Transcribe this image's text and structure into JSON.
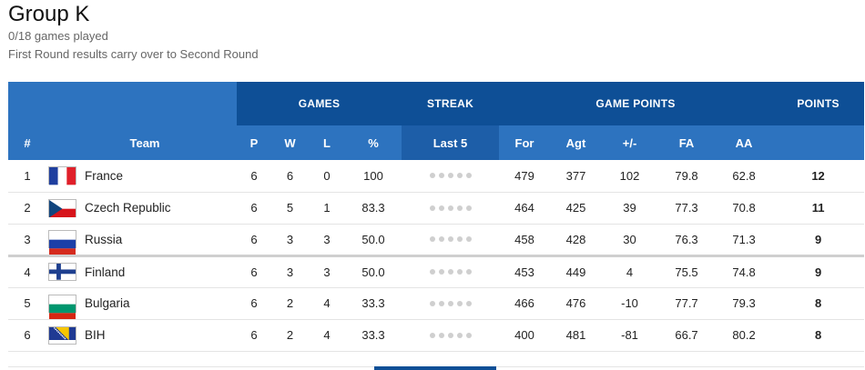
{
  "header": {
    "title": "Group K",
    "games_played": "0/18 games played",
    "note": "First Round results carry over to Second Round"
  },
  "table": {
    "group_headers": {
      "games": "GAMES",
      "streak": "STREAK",
      "game_points": "GAME POINTS",
      "points": "POINTS"
    },
    "columns": {
      "rank": "#",
      "team": "Team",
      "p": "P",
      "w": "W",
      "l": "L",
      "pct": "%",
      "last5": "Last 5",
      "for": "For",
      "agt": "Agt",
      "diff": "+/-",
      "fa": "FA",
      "aa": "AA"
    },
    "rows": [
      {
        "rank": "1",
        "team": "France",
        "flag": "france-flag-icon",
        "p": "6",
        "w": "6",
        "l": "0",
        "pct": "100",
        "for": "479",
        "agt": "377",
        "diff": "102",
        "fa": "79.8",
        "aa": "62.8",
        "pts": "12"
      },
      {
        "rank": "2",
        "team": "Czech Republic",
        "flag": "czech-flag-icon",
        "p": "6",
        "w": "5",
        "l": "1",
        "pct": "83.3",
        "for": "464",
        "agt": "425",
        "diff": "39",
        "fa": "77.3",
        "aa": "70.8",
        "pts": "11"
      },
      {
        "rank": "3",
        "team": "Russia",
        "flag": "russia-flag-icon",
        "p": "6",
        "w": "3",
        "l": "3",
        "pct": "50.0",
        "for": "458",
        "agt": "428",
        "diff": "30",
        "fa": "76.3",
        "aa": "71.3",
        "pts": "9"
      },
      {
        "rank": "4",
        "team": "Finland",
        "flag": "finland-flag-icon",
        "p": "6",
        "w": "3",
        "l": "3",
        "pct": "50.0",
        "for": "453",
        "agt": "449",
        "diff": "4",
        "fa": "75.5",
        "aa": "74.8",
        "pts": "9"
      },
      {
        "rank": "5",
        "team": "Bulgaria",
        "flag": "bulgaria-flag-icon",
        "p": "6",
        "w": "2",
        "l": "4",
        "pct": "33.3",
        "for": "466",
        "agt": "476",
        "diff": "-10",
        "fa": "77.7",
        "aa": "79.3",
        "pts": "8"
      },
      {
        "rank": "6",
        "team": "BIH",
        "flag": "bih-flag-icon",
        "p": "6",
        "w": "2",
        "l": "4",
        "pct": "33.3",
        "for": "400",
        "agt": "481",
        "diff": "-81",
        "fa": "66.7",
        "aa": "80.2",
        "pts": "8"
      }
    ]
  },
  "colors": {
    "header_dark": "#0e4f96",
    "header_mid": "#1d5ea8",
    "header_light": "#2d73bf",
    "streak_dot": "#cfcfcf"
  }
}
